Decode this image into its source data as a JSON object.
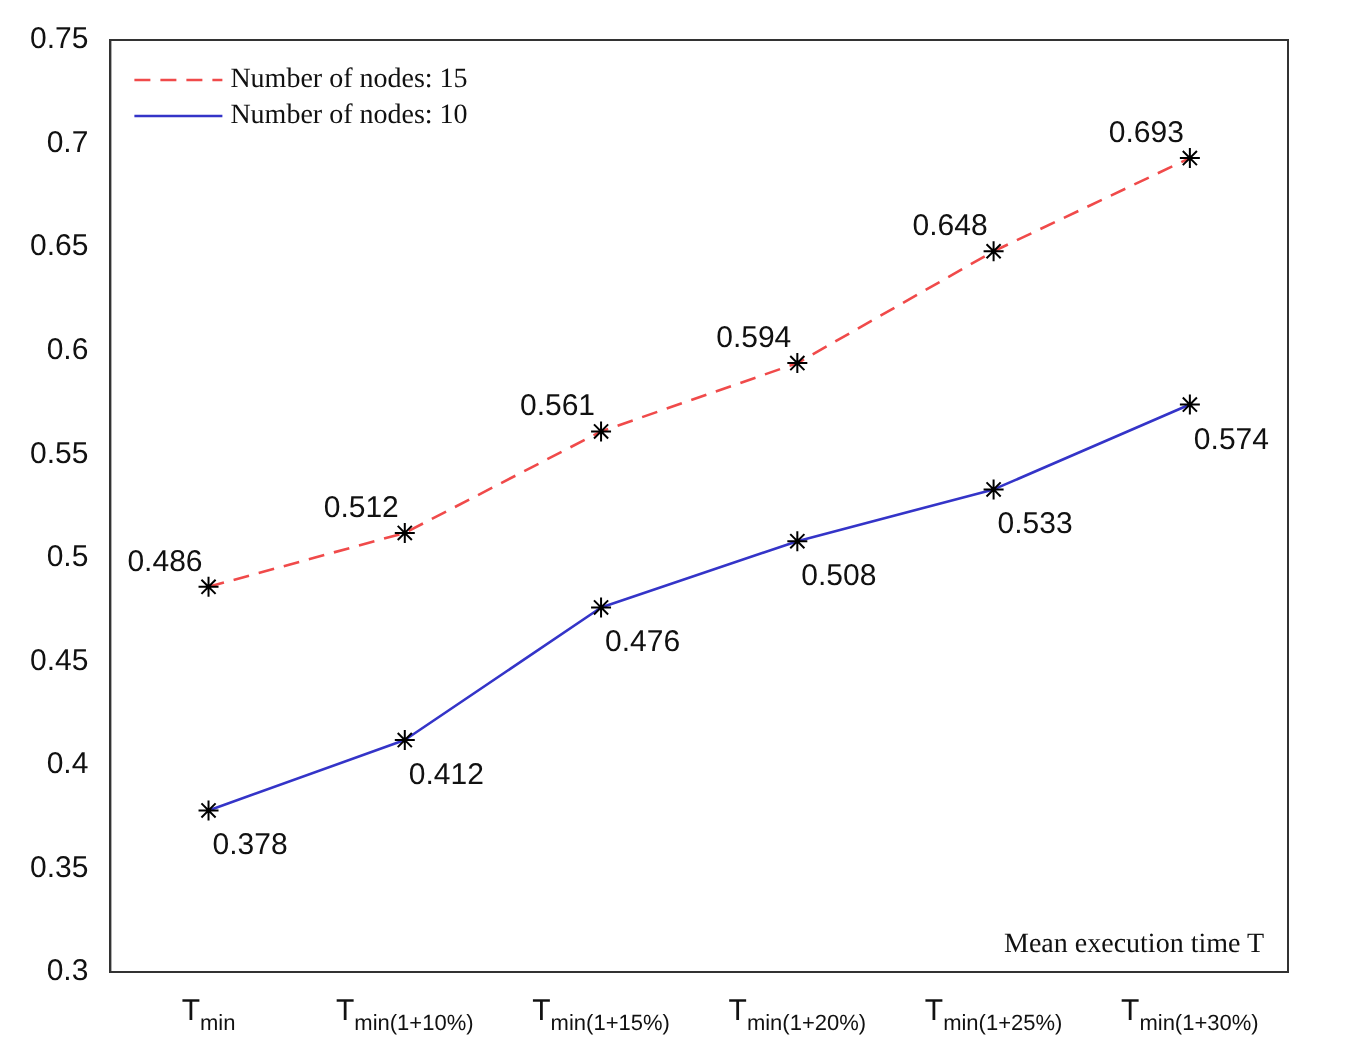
{
  "chart_data": {
    "type": "line",
    "xlabel": "Mean execution time T",
    "categories": [
      "T$_{min}$",
      "T$_{min(1+10%)}$",
      "T$_{min(1+15%)}$",
      "T$_{min(1+20%)}$",
      "T$_{min(1+25%)}$",
      "T$_{min(1+30%)}$"
    ],
    "series": [
      {
        "name": "Number of nodes: 15",
        "color": "#f04a4a",
        "line_style": "dashed",
        "values": [
          0.486,
          0.512,
          0.561,
          0.594,
          0.648,
          0.693
        ]
      },
      {
        "name": "Number of nodes: 10",
        "color": "#3434c8",
        "line_style": "solid",
        "values": [
          0.378,
          0.412,
          0.476,
          0.508,
          0.533,
          0.574
        ]
      }
    ],
    "ylim": [
      0.3,
      0.75
    ],
    "yticks": [
      0.3,
      0.35,
      0.4,
      0.45,
      0.5,
      0.55,
      0.6,
      0.65,
      0.7,
      0.75
    ],
    "marker": "cross",
    "data_labels": true,
    "legend": "top left",
    "grid": false
  }
}
